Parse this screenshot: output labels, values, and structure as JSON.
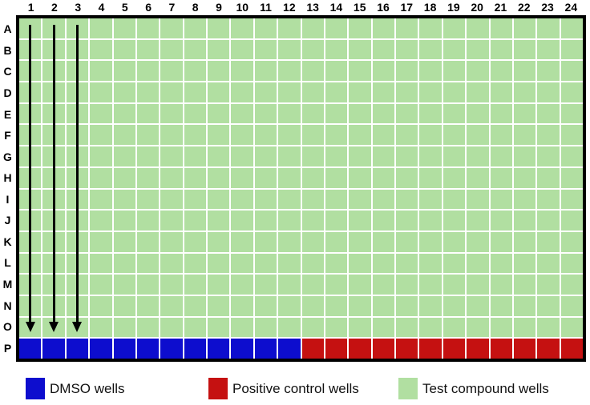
{
  "plate": {
    "column_labels": [
      "1",
      "2",
      "3",
      "4",
      "5",
      "6",
      "7",
      "8",
      "9",
      "10",
      "11",
      "12",
      "13",
      "14",
      "15",
      "16",
      "17",
      "18",
      "19",
      "20",
      "21",
      "22",
      "23",
      "24"
    ],
    "row_labels": [
      "A",
      "B",
      "C",
      "D",
      "E",
      "F",
      "G",
      "H",
      "I",
      "J",
      "K",
      "L",
      "M",
      "N",
      "O",
      "P"
    ],
    "well_colors": {
      "test_compound": "#B1DFA1",
      "dmso": "#0D0DCE",
      "positive_control": "#C51111"
    },
    "gridline_color": "#FFFFFF",
    "border_color": "#000000",
    "layout": {
      "dmso": {
        "row": "P",
        "column_start": 1,
        "column_end": 12
      },
      "positive_control": {
        "row": "P",
        "column_start": 13,
        "column_end": 24
      },
      "test_compound": {
        "row_start": "A",
        "row_end": "O",
        "column_start": 1,
        "column_end": 24
      }
    },
    "arrows": {
      "columns": [
        1,
        2,
        3
      ],
      "from_row": "A",
      "to_row": "O",
      "color": "#000000"
    }
  },
  "legend": {
    "items": [
      {
        "label": "DMSO wells",
        "color": "#0D0DCE"
      },
      {
        "label": "Positive control wells",
        "color": "#C51111"
      },
      {
        "label": "Test compound wells",
        "color": "#B1DFA1"
      }
    ]
  }
}
